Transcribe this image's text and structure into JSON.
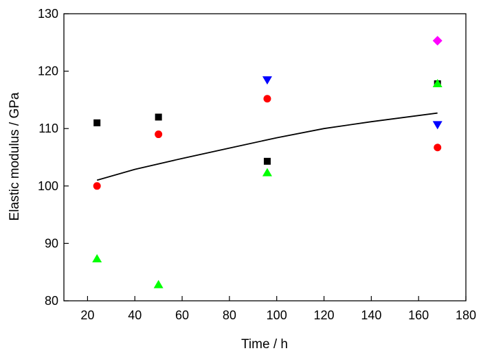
{
  "chart_data": {
    "type": "scatter",
    "title": "",
    "xlabel": "Time / h",
    "ylabel": "Elastic modulus / GPa",
    "xlim": [
      10,
      180
    ],
    "ylim": [
      80,
      130
    ],
    "xticks": [
      20,
      40,
      60,
      80,
      100,
      120,
      140,
      160,
      180
    ],
    "yticks": [
      80,
      90,
      100,
      110,
      120,
      130
    ],
    "x_tick_labels": [
      "20",
      "40",
      "60",
      "80",
      "100",
      "120",
      "140",
      "160",
      "180"
    ],
    "y_tick_labels": [
      "80",
      "90",
      "100",
      "110",
      "120",
      "130"
    ],
    "grid": false,
    "legend": "none",
    "series": [
      {
        "marker": "square",
        "color": "#000000",
        "points": [
          [
            24,
            111.0
          ],
          [
            50,
            112.0
          ],
          [
            96,
            104.3
          ],
          [
            168,
            117.8
          ]
        ]
      },
      {
        "marker": "circle",
        "color": "#ff0000",
        "points": [
          [
            24,
            100.0
          ],
          [
            50,
            109.0
          ],
          [
            96,
            115.2
          ],
          [
            168,
            106.7
          ]
        ]
      },
      {
        "marker": "triangle-up",
        "color": "#00ff00",
        "points": [
          [
            24,
            87.3
          ],
          [
            50,
            82.8
          ],
          [
            96,
            102.3
          ],
          [
            168,
            117.8
          ]
        ]
      },
      {
        "marker": "triangle-down",
        "color": "#0000ff",
        "points": [
          [
            96,
            118.5
          ],
          [
            168,
            110.7
          ]
        ]
      },
      {
        "marker": "diamond",
        "color": "#ff00ff",
        "points": [
          [
            168,
            125.3
          ]
        ]
      }
    ],
    "fit_line": {
      "color": "#000000",
      "points": [
        [
          24,
          101.0
        ],
        [
          40,
          102.9
        ],
        [
          60,
          104.8
        ],
        [
          80,
          106.6
        ],
        [
          100,
          108.4
        ],
        [
          120,
          110.0
        ],
        [
          140,
          111.2
        ],
        [
          168,
          112.7
        ]
      ]
    }
  }
}
